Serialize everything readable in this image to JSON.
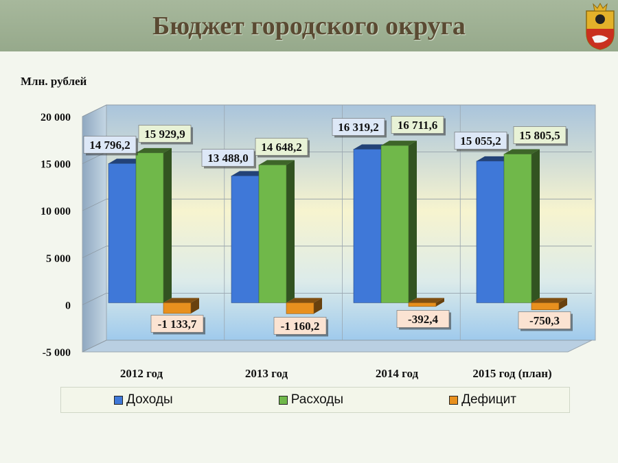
{
  "header": {
    "title": "Бюджет городского округа"
  },
  "chart_data": {
    "type": "bar",
    "ylabel": "Млн. рублей",
    "ylim": [
      -5000,
      20000
    ],
    "yticks": [
      20000,
      15000,
      10000,
      5000,
      0,
      -5000
    ],
    "ytick_labels": [
      "20 000",
      "15 000",
      "10 000",
      "5 000",
      "0",
      "-5 000"
    ],
    "categories": [
      "2012 год",
      "2013 год",
      "2014 год",
      "2015 год  (план)"
    ],
    "series": [
      {
        "name": "Доходы",
        "color": "#3f78d8",
        "values": [
          14796.2,
          13488.0,
          16319.2,
          15055.2
        ],
        "labels": [
          "14 796,2",
          "13 488,0",
          "16 319,2",
          "15 055,2"
        ],
        "label_bg": "#dde8f7"
      },
      {
        "name": "Расходы",
        "color": "#70b84a",
        "values": [
          15929.9,
          14648.2,
          16711.6,
          15805.5
        ],
        "labels": [
          "15 929,9",
          "14 648,2",
          "16 711,6",
          "15 805,5"
        ],
        "label_bg": "#e8f2d6"
      },
      {
        "name": "Дефицит",
        "color": "#e8901e",
        "values": [
          -1133.7,
          -1160.2,
          -392.4,
          -750.3
        ],
        "labels": [
          "-1 133,7",
          "-1 160,2",
          "-392,4",
          "-750,3"
        ],
        "label_bg": "#fbe3d2"
      }
    ],
    "legend_position": "bottom",
    "grid": true
  }
}
